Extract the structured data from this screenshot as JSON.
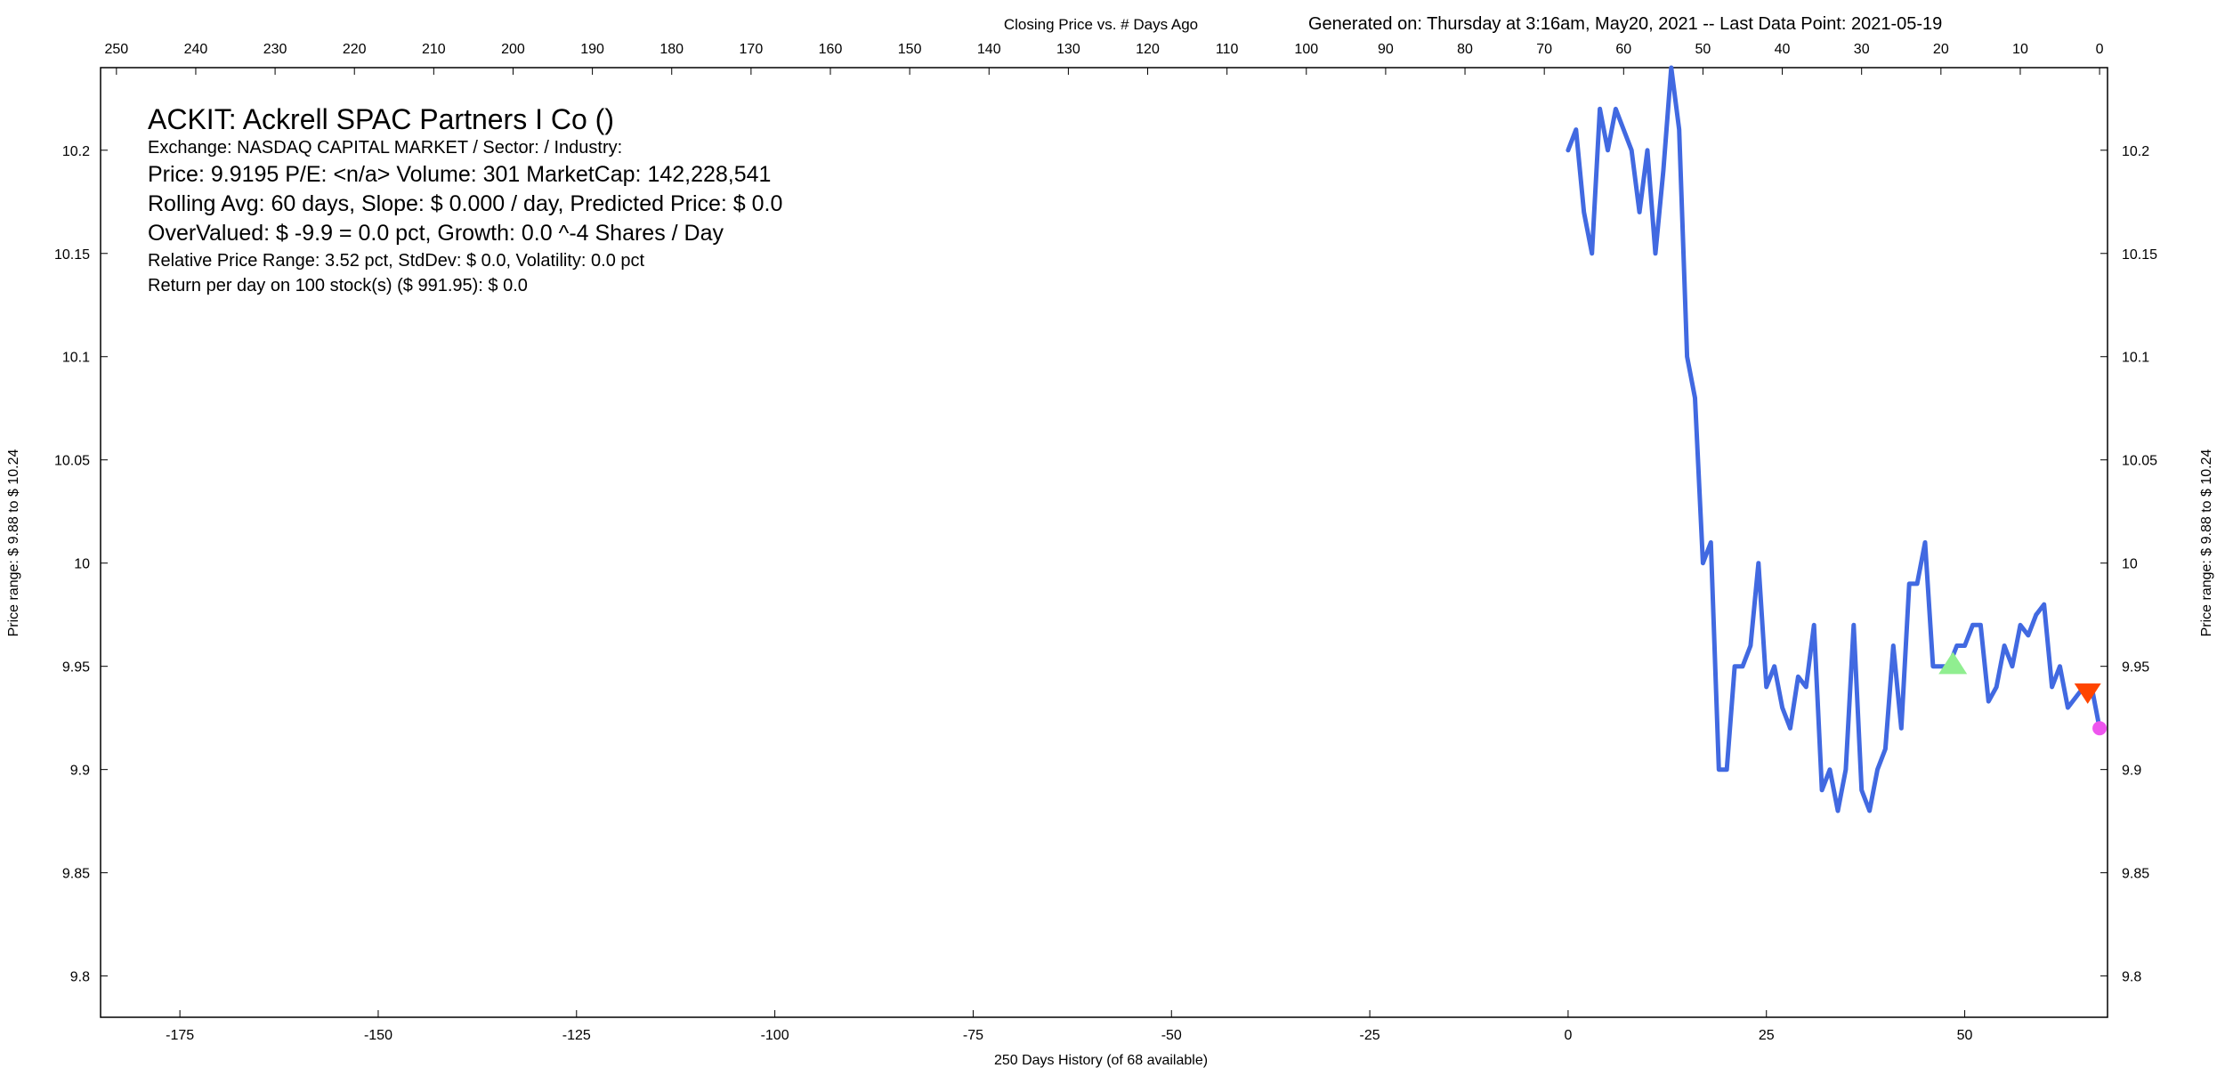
{
  "header": {
    "caption": "Closing Price vs. # Days Ago",
    "generated": "Generated on:  Thursday at  3:16am, May20, 2021  --  Last Data Point:  2021-05-19"
  },
  "info": {
    "title": "ACKIT:  Ackrell SPAC Partners I Co  ()",
    "exchange": "Exchange: NASDAQ CAPITAL MARKET  /  Sector:   /  Industry:",
    "price": "Price: 9.9195  P/E: <n/a> Volume: 301  MarketCap: 142,228,541",
    "rolling": "Rolling Avg: 60 days, Slope: $ 0.000 / day, Predicted Price: $ 0.0",
    "overvalued": "OverValued: $ -9.9 = 0.0 pct,  Growth: 0.0 ^-4 Shares / Day",
    "range": "Relative Price Range: 3.52 pct, StdDev: $ 0.0, Volatility: 0.0 pct",
    "return": "Return per day on 100 stock(s) ($ 991.95): $ 0.0"
  },
  "chart_data": {
    "type": "line",
    "xlabel": "250 Days History (of 68 available)",
    "ylabel": "Price range:  $ 9.88  to  $ 10.24",
    "xlim": [
      -185,
      68
    ],
    "ylim": [
      9.78,
      10.24
    ],
    "x_ticks": [
      -175,
      -150,
      -125,
      -100,
      -75,
      -50,
      -25,
      0,
      25,
      50
    ],
    "x_top_ticks": [
      250,
      240,
      230,
      220,
      210,
      200,
      190,
      180,
      170,
      160,
      150,
      140,
      130,
      120,
      110,
      100,
      90,
      80,
      70,
      60,
      50,
      40,
      30,
      20,
      10,
      0
    ],
    "y_ticks": [
      9.8,
      9.85,
      9.9,
      9.95,
      10,
      10.05,
      10.1,
      10.15,
      10.2
    ],
    "grid": false,
    "series": [
      {
        "color": "#4169e1",
        "x": [
          0,
          1,
          2,
          3,
          4,
          5,
          6,
          7,
          8,
          9,
          10,
          11,
          12,
          13,
          14,
          15,
          16,
          17,
          18,
          19,
          20,
          21,
          22,
          23,
          24,
          25,
          26,
          27,
          28,
          29,
          30,
          31,
          32,
          33,
          34,
          35,
          36,
          37,
          38,
          39,
          40,
          41,
          42,
          43,
          44,
          45,
          46,
          47,
          48,
          49,
          50,
          51,
          52,
          53,
          54,
          55,
          56,
          57,
          58,
          59,
          60,
          61,
          62,
          63,
          64,
          65,
          66,
          67
        ],
        "values": [
          10.2,
          10.21,
          10.17,
          10.15,
          10.22,
          10.2,
          10.22,
          10.21,
          10.2,
          10.17,
          10.2,
          10.15,
          10.19,
          10.24,
          10.21,
          10.1,
          10.08,
          10.0,
          10.01,
          9.9,
          9.9,
          9.95,
          9.95,
          9.96,
          10.0,
          9.94,
          9.95,
          9.93,
          9.92,
          9.945,
          9.94,
          9.97,
          9.89,
          9.9,
          9.88,
          9.9,
          9.97,
          9.89,
          9.88,
          9.9,
          9.91,
          9.96,
          9.92,
          9.99,
          9.99,
          10.01,
          9.95,
          9.95,
          9.95,
          9.96,
          9.96,
          9.97,
          9.97,
          9.933,
          9.94,
          9.96,
          9.95,
          9.97,
          9.965,
          9.975,
          9.98,
          9.94,
          9.95,
          9.93,
          9.935,
          9.94,
          9.94,
          9.92
        ]
      }
    ],
    "markers": [
      {
        "type": "triangle-up",
        "x": 48.5,
        "y": 9.951,
        "color": "#90ee90"
      },
      {
        "type": "triangle-down",
        "x": 65.5,
        "y": 9.937,
        "color": "#ff4500"
      },
      {
        "type": "dot",
        "x": 67,
        "y": 9.92,
        "color": "#ee55ee"
      }
    ]
  }
}
